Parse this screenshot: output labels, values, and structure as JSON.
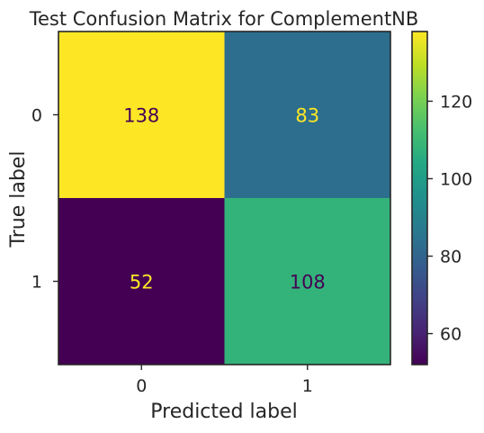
{
  "chart_data": {
    "type": "heatmap",
    "title": "Test Confusion Matrix for ComplementNB",
    "xlabel": "Predicted label",
    "ylabel": "True label",
    "x_categories": [
      "0",
      "1"
    ],
    "y_categories": [
      "0",
      "1"
    ],
    "values": [
      [
        138,
        83
      ],
      [
        52,
        108
      ]
    ],
    "colormap": "viridis",
    "colorbar": {
      "range": [
        52,
        138
      ],
      "ticks": [
        60,
        80,
        100,
        120
      ],
      "tick_labels": [
        "60",
        "80",
        "100",
        "120"
      ]
    },
    "grid": false
  }
}
